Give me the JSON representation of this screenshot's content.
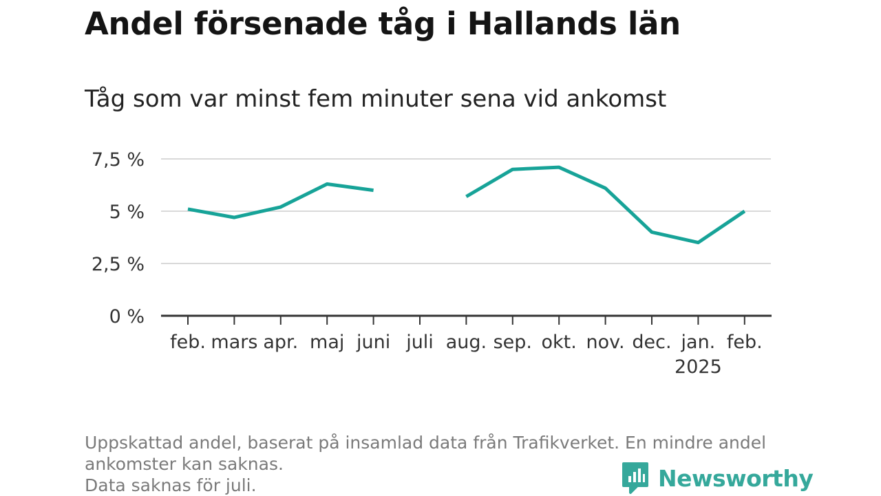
{
  "title": "Andel försenade tåg i Hallands län",
  "subtitle": "Tåg som var minst fem minuter sena vid ankomst",
  "footer": {
    "line1": "Uppskattad andel, baserat på insamlad data från Trafikverket. En mindre andel",
    "line2": "ankomster kan saknas.",
    "line3": "Data saknas för juli."
  },
  "brand": {
    "name": "Newsworthy",
    "icon": "chart-bubble-icon",
    "color": "#35a89b"
  },
  "chart_data": {
    "type": "line",
    "categories": [
      "feb.",
      "mars",
      "apr.",
      "maj",
      "juni",
      "juli",
      "aug.",
      "sep.",
      "okt.",
      "nov.",
      "dec.",
      "jan.",
      "feb."
    ],
    "category_sublabels": [
      "",
      "",
      "",
      "",
      "",
      "",
      "",
      "",
      "",
      "",
      "",
      "2025",
      ""
    ],
    "series": [
      {
        "values": [
          5.1,
          4.7,
          5.2,
          6.3,
          6.0,
          null,
          5.7,
          7.0,
          7.1,
          6.1,
          4.0,
          3.5,
          5.0
        ],
        "color": "#17a398"
      }
    ],
    "yticks": [
      {
        "value": 0,
        "label": "0 %"
      },
      {
        "value": 2.5,
        "label": "2,5 %"
      },
      {
        "value": 5,
        "label": "5 %"
      },
      {
        "value": 7.5,
        "label": "7,5 %"
      }
    ],
    "ylim": [
      0,
      7.5
    ],
    "grid": true,
    "xlabel": "",
    "ylabel": ""
  }
}
